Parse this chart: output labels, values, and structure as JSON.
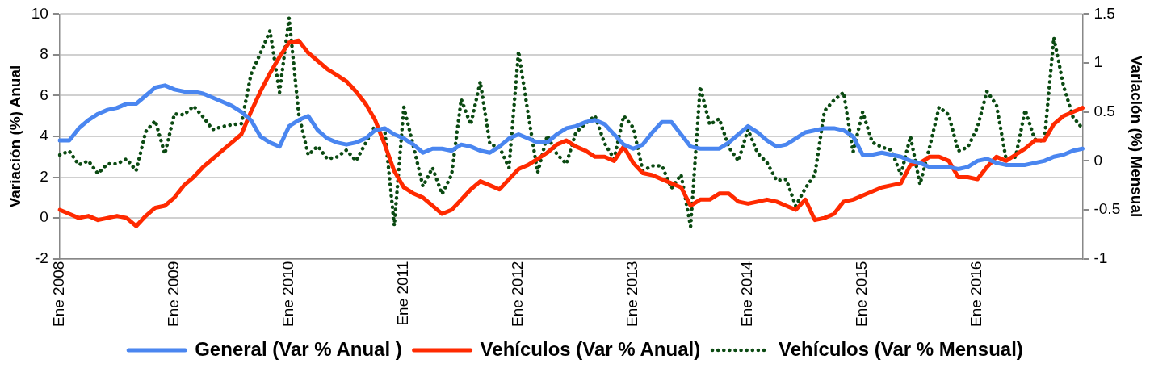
{
  "chart_data": {
    "type": "line",
    "ylabel": "Variación (%) Anual",
    "y2label": "Variación (%) Mensual",
    "categories": [
      "Ene 2008",
      null,
      null,
      null,
      null,
      null,
      null,
      null,
      null,
      null,
      null,
      null,
      "Ene 2009",
      null,
      null,
      null,
      null,
      null,
      null,
      null,
      null,
      null,
      null,
      null,
      "Ene 2010",
      null,
      null,
      null,
      null,
      null,
      null,
      null,
      null,
      null,
      null,
      null,
      "Ene 2011",
      null,
      null,
      null,
      null,
      null,
      null,
      null,
      null,
      null,
      null,
      null,
      "Ene 2012",
      null,
      null,
      null,
      null,
      null,
      null,
      null,
      null,
      null,
      null,
      null,
      "Ene 2013",
      null,
      null,
      null,
      null,
      null,
      null,
      null,
      null,
      null,
      null,
      null,
      "Ene 2014",
      null,
      null,
      null,
      null,
      null,
      null,
      null,
      null,
      null,
      null,
      null,
      "Ene 2015",
      null,
      null,
      null,
      null,
      null,
      null,
      null,
      null,
      null,
      null,
      null,
      "Ene 2016",
      null,
      null,
      null,
      null,
      null,
      null,
      null,
      null,
      null,
      null,
      null
    ],
    "ylim": [
      -2,
      10
    ],
    "yticks": [
      -2,
      0,
      2,
      4,
      6,
      8,
      10
    ],
    "y2lim": [
      -1,
      1.5
    ],
    "y2ticks": [
      -1,
      -0.5,
      0,
      0.5,
      1,
      1.5
    ],
    "grid": "y",
    "legend": "bottom",
    "marker": "none",
    "series": [
      {
        "name": "General (Var % Anual )",
        "color": "#4a86f0",
        "line_style": "solid",
        "values": [
          3.8,
          3.8,
          4.4,
          4.8,
          5.1,
          5.3,
          5.4,
          5.6,
          5.6,
          6.0,
          6.4,
          6.5,
          6.3,
          6.2,
          6.2,
          6.1,
          5.9,
          5.7,
          5.5,
          5.2,
          4.8,
          4.0,
          3.7,
          3.5,
          4.5,
          4.8,
          5.0,
          4.3,
          3.9,
          3.7,
          3.6,
          3.7,
          3.9,
          4.3,
          4.4,
          4.1,
          3.9,
          3.6,
          3.2,
          3.4,
          3.4,
          3.3,
          3.6,
          3.5,
          3.3,
          3.2,
          3.5,
          3.9,
          4.1,
          3.9,
          3.7,
          3.7,
          4.1,
          4.4,
          4.5,
          4.7,
          4.8,
          4.6,
          4.1,
          3.6,
          3.4,
          3.6,
          4.2,
          4.7,
          4.7,
          4.1,
          3.5,
          3.4,
          3.4,
          3.4,
          3.7,
          4.1,
          4.5,
          4.2,
          3.8,
          3.5,
          3.6,
          3.9,
          4.2,
          4.3,
          4.4,
          4.4,
          4.3,
          4.0,
          3.1,
          3.1,
          3.2,
          3.1,
          3.0,
          2.8,
          2.7,
          2.5,
          2.5,
          2.5,
          2.4,
          2.5,
          2.8,
          2.9,
          2.7,
          2.6,
          2.6,
          2.6,
          2.7,
          2.8,
          3.0,
          3.1,
          3.3,
          3.4
        ]
      },
      {
        "name": "Vehículos (Var % Anual)",
        "color": "#ff2a00",
        "line_style": "solid",
        "values": [
          0.4,
          0.2,
          0.0,
          0.1,
          -0.1,
          0.0,
          0.1,
          0.0,
          -0.4,
          0.1,
          0.5,
          0.6,
          1.0,
          1.6,
          2.0,
          2.5,
          2.9,
          3.3,
          3.7,
          4.1,
          5.2,
          6.2,
          7.1,
          7.9,
          8.6,
          8.7,
          8.1,
          7.7,
          7.3,
          7.0,
          6.7,
          6.2,
          5.6,
          4.8,
          3.6,
          2.3,
          1.5,
          1.2,
          1.0,
          0.6,
          0.2,
          0.4,
          0.9,
          1.4,
          1.8,
          1.6,
          1.4,
          1.9,
          2.4,
          2.6,
          2.9,
          3.2,
          3.6,
          3.8,
          3.5,
          3.3,
          3.0,
          3.0,
          2.8,
          3.5,
          2.7,
          2.2,
          2.1,
          1.9,
          1.7,
          1.5,
          0.6,
          0.9,
          0.9,
          1.2,
          1.2,
          0.8,
          0.7,
          0.8,
          0.9,
          0.8,
          0.6,
          0.4,
          0.9,
          -0.1,
          0.0,
          0.2,
          0.8,
          0.9,
          1.1,
          1.3,
          1.5,
          1.6,
          1.7,
          2.6,
          2.7,
          3.0,
          3.0,
          2.8,
          2.0,
          2.0,
          1.9,
          2.5,
          3.0,
          2.8,
          3.1,
          3.4,
          3.8,
          3.8,
          4.6,
          5.0,
          5.2,
          5.4
        ]
      },
      {
        "name": "Vehículos (Var % Mensual)",
        "color": "#0b4a12",
        "line_style": "dotted",
        "axis": "y2",
        "values": [
          0.06,
          0.1,
          -0.04,
          0.0,
          -0.13,
          -0.03,
          -0.03,
          0.02,
          -0.1,
          0.3,
          0.41,
          0.07,
          0.48,
          0.47,
          0.56,
          0.45,
          0.32,
          0.35,
          0.37,
          0.38,
          0.88,
          1.1,
          1.33,
          0.7,
          1.46,
          0.48,
          0.06,
          0.15,
          0.02,
          0.04,
          0.11,
          0.0,
          0.18,
          0.36,
          0.32,
          -0.66,
          0.55,
          0.15,
          -0.26,
          -0.07,
          -0.34,
          -0.14,
          0.63,
          0.37,
          0.81,
          0.17,
          0.14,
          -0.07,
          1.12,
          0.48,
          -0.12,
          0.26,
          0.07,
          -0.03,
          0.29,
          0.38,
          0.46,
          0.18,
          0.02,
          0.46,
          0.34,
          -0.1,
          -0.05,
          -0.05,
          -0.28,
          -0.14,
          -0.67,
          0.76,
          0.37,
          0.43,
          0.14,
          0.0,
          0.32,
          0.08,
          -0.02,
          -0.2,
          -0.19,
          -0.46,
          -0.28,
          -0.14,
          0.51,
          0.62,
          0.7,
          0.09,
          0.5,
          0.19,
          0.14,
          0.11,
          -0.14,
          0.25,
          -0.24,
          0.14,
          0.55,
          0.47,
          0.1,
          0.14,
          0.34,
          0.71,
          0.57,
          0.02,
          0.04,
          0.52,
          0.22,
          0.2,
          1.26,
          0.77,
          0.45,
          0.33
        ]
      }
    ]
  }
}
